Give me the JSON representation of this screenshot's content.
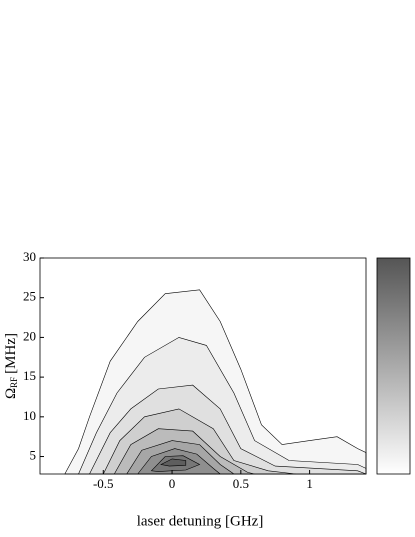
{
  "chart_data": {
    "type": "contour",
    "xlabel": "laser detuning [GHz]",
    "ylabel": {
      "symbol": "Ω",
      "sub": "RF",
      "unit": "[MHz]"
    },
    "xlim": [
      -0.96,
      1.41
    ],
    "ylim": [
      2.8,
      30
    ],
    "xticks": [
      -0.5,
      0,
      0.5,
      1
    ],
    "yticks": [
      5,
      10,
      15,
      20,
      25,
      30
    ],
    "contours": [
      {
        "color": "#f6f6f6",
        "x": [
          -0.78,
          -0.68,
          -0.6,
          -0.45,
          -0.25,
          -0.05,
          0.2,
          0.35,
          0.5,
          0.65,
          0.8,
          1.0,
          1.2,
          1.35,
          1.41,
          1.41
        ],
        "y": [
          2.8,
          6,
          10,
          17,
          22,
          25.5,
          26,
          22,
          16,
          9,
          6.5,
          7,
          7.5,
          6,
          5.5,
          2.8
        ]
      },
      {
        "color": "#ececec",
        "x": [
          -0.68,
          -0.55,
          -0.4,
          -0.2,
          0.05,
          0.25,
          0.45,
          0.6,
          0.85,
          1.35,
          1.41,
          1.41
        ],
        "y": [
          2.8,
          8,
          13,
          17.5,
          20,
          19,
          13,
          7,
          4.5,
          4,
          3.5,
          2.8
        ]
      },
      {
        "color": "#e0e0e0",
        "x": [
          -0.6,
          -0.45,
          -0.3,
          -0.1,
          0.15,
          0.35,
          0.5,
          0.75,
          1.35,
          1.41
        ],
        "y": [
          2.8,
          8,
          11,
          13.5,
          14,
          11,
          6,
          3.8,
          3.2,
          2.8
        ]
      },
      {
        "color": "#cfcfcf",
        "x": [
          -0.5,
          -0.38,
          -0.2,
          0.05,
          0.3,
          0.45,
          0.7,
          0.9
        ],
        "y": [
          2.8,
          7,
          10,
          11,
          8.5,
          4.5,
          3.2,
          2.8
        ]
      },
      {
        "color": "#bbbbbb",
        "x": [
          -0.42,
          -0.3,
          -0.1,
          0.15,
          0.35,
          0.55,
          0.6
        ],
        "y": [
          2.8,
          6.5,
          8.5,
          8.2,
          5,
          3,
          2.8
        ]
      },
      {
        "color": "#a6a6a6",
        "x": [
          -0.33,
          -0.22,
          0,
          0.2,
          0.35,
          0.45
        ],
        "y": [
          2.8,
          5.8,
          7,
          6.5,
          4,
          2.8
        ]
      },
      {
        "color": "#8f8f8f",
        "x": [
          -0.25,
          -0.15,
          0.02,
          0.18,
          0.3,
          0.35
        ],
        "y": [
          2.8,
          5,
          6,
          5.3,
          3.5,
          2.8
        ]
      },
      {
        "color": "#777777",
        "x": [
          -0.15,
          -0.05,
          0.08,
          0.2,
          0.1,
          -0.1
        ],
        "y": [
          3.2,
          5,
          5.1,
          4,
          3.3,
          3.1
        ]
      },
      {
        "color": "#5e5e5e",
        "x": [
          -0.08,
          0,
          0.1,
          0.1,
          -0.02
        ],
        "y": [
          4,
          4.7,
          4.5,
          3.9,
          3.8
        ]
      }
    ]
  }
}
